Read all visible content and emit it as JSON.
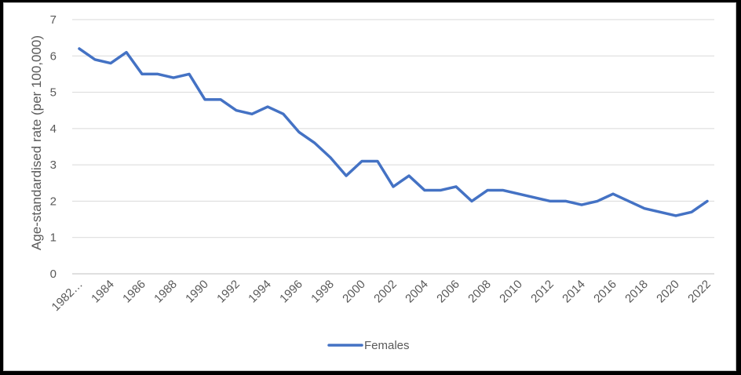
{
  "chart_data": {
    "type": "line",
    "xlabel": "",
    "ylabel": "Age-standardised rate (per 100,000)",
    "ylim": [
      0,
      7
    ],
    "yticks": [
      0,
      1,
      2,
      3,
      4,
      5,
      6,
      7
    ],
    "grid": true,
    "legend_position": "bottom",
    "x": [
      "1982…",
      "1983",
      "1984",
      "1985",
      "1986",
      "1987",
      "1988",
      "1989",
      "1990",
      "1991",
      "1992",
      "1993",
      "1994",
      "1995",
      "1996",
      "1997",
      "1998",
      "1999",
      "2000",
      "2001",
      "2002",
      "2003",
      "2004",
      "2005",
      "2006",
      "2007",
      "2008",
      "2009",
      "2010",
      "2011",
      "2012",
      "2013",
      "2014",
      "2015",
      "2016",
      "2017",
      "2018",
      "2019",
      "2020",
      "2021",
      "2022"
    ],
    "x_tick_labels": [
      "1982…",
      "1984",
      "1986",
      "1988",
      "1990",
      "1992",
      "1994",
      "1996",
      "1998",
      "2000",
      "2002",
      "2004",
      "2006",
      "2008",
      "2010",
      "2012",
      "2014",
      "2016",
      "2018",
      "2020",
      "2022"
    ],
    "series": [
      {
        "name": "Females",
        "color": "#4472c4",
        "values": [
          6.2,
          5.9,
          5.8,
          6.1,
          5.5,
          5.5,
          5.4,
          5.5,
          4.8,
          4.8,
          4.5,
          4.4,
          4.6,
          4.4,
          3.9,
          3.6,
          3.2,
          2.7,
          3.1,
          3.1,
          2.4,
          2.7,
          2.3,
          2.3,
          2.4,
          2.0,
          2.3,
          2.3,
          2.2,
          2.1,
          2.0,
          2.0,
          1.9,
          2.0,
          2.2,
          2.0,
          1.8,
          1.7,
          1.6,
          1.7,
          2.0
        ]
      }
    ]
  }
}
